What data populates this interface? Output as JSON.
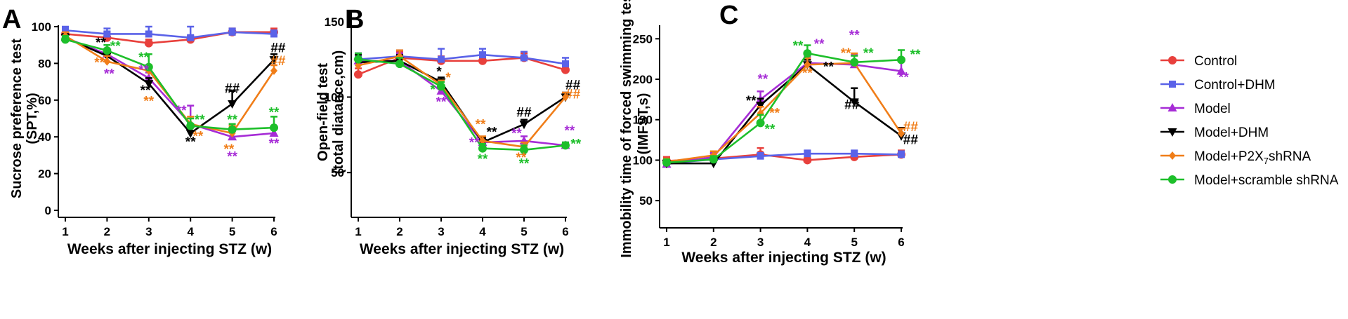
{
  "series_colors": {
    "Control": "#E8403C",
    "Control+DHM": "#5A62E8",
    "Model": "#A62CD6",
    "Model+DHM": "#000000",
    "Model+P2X7shRNA": "#F07D18",
    "Model+scramble shRNA": "#1DBF2A"
  },
  "legend": {
    "entries": [
      {
        "name": "Control",
        "label": "Control",
        "marker": "circle"
      },
      {
        "name": "Control+DHM",
        "label": "Control+DHM",
        "marker": "square"
      },
      {
        "name": "Model",
        "label": "Model",
        "marker": "triangle-up"
      },
      {
        "name": "Model+DHM",
        "label": "Model+DHM",
        "marker": "triangle-down"
      },
      {
        "name": "Model+P2X7shRNA",
        "label_pre": "Model+P2X",
        "label_sub": "7",
        "label_post": "shRNA",
        "marker": "diamond"
      },
      {
        "name": "Model+scramble shRNA",
        "label": "Model+scramble shRNA",
        "marker": "circle"
      }
    ]
  },
  "chart_data": [
    {
      "panel": "A",
      "type": "line",
      "ylabel_line1": "Sucrose preference test",
      "ylabel_line2": "(SPT,%)",
      "xlabel": "Weeks after injecting STZ (w)",
      "x": [
        1,
        2,
        3,
        4,
        5,
        6
      ],
      "ylim": [
        0,
        100
      ],
      "yticks": [
        0,
        20,
        40,
        60,
        80,
        100
      ],
      "series": [
        {
          "name": "Control",
          "values": [
            96,
            94,
            91,
            93,
            97,
            97
          ],
          "err": [
            2,
            3,
            2,
            2,
            2,
            2
          ]
        },
        {
          "name": "Control+DHM",
          "values": [
            98,
            96,
            96,
            94,
            97,
            96
          ],
          "err": [
            2,
            3,
            4,
            6,
            2,
            2
          ]
        },
        {
          "name": "Model",
          "values": [
            94,
            85,
            72,
            47,
            40,
            42
          ],
          "err": [
            2,
            3,
            3,
            10,
            3,
            3
          ]
        },
        {
          "name": "Model+DHM",
          "values": [
            94,
            84,
            69,
            42,
            58,
            82
          ],
          "err": [
            2,
            3,
            3,
            5,
            7,
            3
          ]
        },
        {
          "name": "Model+P2X7shRNA",
          "values": [
            95,
            81,
            76,
            47,
            42,
            76
          ],
          "err": [
            2,
            3,
            3,
            4,
            4,
            3
          ]
        },
        {
          "name": "Model+scramble shRNA",
          "values": [
            93,
            87,
            78,
            46,
            44,
            45
          ],
          "err": [
            2,
            3,
            7,
            4,
            3,
            6
          ]
        }
      ],
      "annotations": [
        {
          "text": "**",
          "series": "Model+DHM",
          "x": 1.85,
          "y": 89
        },
        {
          "text": "**",
          "series": "Model+scramble shRNA",
          "x": 2.2,
          "y": 87
        },
        {
          "text": "**",
          "series": "Model+P2X7shRNA",
          "x": 1.82,
          "y": 78
        },
        {
          "text": "**",
          "series": "Model",
          "x": 2.05,
          "y": 72
        },
        {
          "text": "**",
          "series": "Model+scramble shRNA",
          "x": 2.88,
          "y": 81
        },
        {
          "text": "**",
          "series": "Model",
          "x": 2.88,
          "y": 74
        },
        {
          "text": "**",
          "series": "Model+DHM",
          "x": 2.92,
          "y": 63
        },
        {
          "text": "**",
          "series": "Model+P2X7shRNA",
          "x": 3.0,
          "y": 57
        },
        {
          "text": "**",
          "series": "Model",
          "x": 3.78,
          "y": 52
        },
        {
          "text": "**",
          "series": "Model+scramble shRNA",
          "x": 4.22,
          "y": 47
        },
        {
          "text": "**",
          "series": "Model+P2X7shRNA",
          "x": 4.18,
          "y": 38
        },
        {
          "text": "**",
          "series": "Model+DHM",
          "x": 4.0,
          "y": 35
        },
        {
          "text": "**",
          "series": "Model+scramble shRNA",
          "x": 5.0,
          "y": 47
        },
        {
          "text": "**",
          "series": "Model+P2X7shRNA",
          "x": 4.92,
          "y": 31
        },
        {
          "text": "**",
          "series": "Model",
          "x": 5.0,
          "y": 27
        },
        {
          "text": "##",
          "series": "Model+DHM",
          "x": 5.0,
          "y": 64
        },
        {
          "text": "##",
          "series": "Model+DHM",
          "x": 6.1,
          "y": 86
        },
        {
          "text": "##",
          "series": "Model+P2X7shRNA",
          "x": 6.1,
          "y": 79
        },
        {
          "text": "**",
          "series": "Model+scramble shRNA",
          "x": 6.0,
          "y": 51
        },
        {
          "text": "**",
          "series": "Model",
          "x": 6.0,
          "y": 34
        }
      ]
    },
    {
      "panel": "B",
      "type": "line",
      "ylabel_line1": "Open-field test",
      "ylabel_line2": "(total diatance,cm)",
      "xlabel": "Weeks after injecting STZ (w)",
      "x": [
        1,
        2,
        3,
        4,
        5,
        6
      ],
      "ylim": [
        25,
        155
      ],
      "yticks": [
        50,
        100,
        150
      ],
      "series": [
        {
          "name": "Control",
          "values": [
            115,
            126,
            124,
            124,
            126,
            118
          ],
          "err": [
            4,
            4,
            3,
            3,
            3,
            3
          ]
        },
        {
          "name": "Control+DHM",
          "values": [
            125,
            127,
            125,
            128,
            126,
            122
          ],
          "err": [
            4,
            4,
            7,
            4,
            4,
            4
          ]
        },
        {
          "name": "Model",
          "values": [
            124,
            124,
            104,
            70,
            71,
            68
          ],
          "err": [
            5,
            5,
            4,
            3,
            3,
            2
          ]
        },
        {
          "name": "Model+DHM",
          "values": [
            123,
            124,
            110,
            70,
            82,
            100
          ],
          "err": [
            5,
            4,
            3,
            3,
            3,
            3
          ]
        },
        {
          "name": "Model+P2X7shRNA",
          "values": [
            121,
            127,
            108,
            71,
            67,
            100
          ],
          "err": [
            4,
            4,
            3,
            3,
            3,
            3
          ]
        },
        {
          "name": "Model+scramble shRNA",
          "values": [
            125,
            122,
            107,
            66,
            65,
            68
          ],
          "err": [
            4,
            4,
            3,
            3,
            3,
            2
          ]
        }
      ],
      "annotations": [
        {
          "text": "*",
          "series": "Model+DHM",
          "x": 2.95,
          "y": 114
        },
        {
          "text": "*",
          "series": "Model+P2X7shRNA",
          "x": 3.17,
          "y": 110
        },
        {
          "text": "*",
          "series": "Model+scramble shRNA",
          "x": 2.8,
          "y": 102
        },
        {
          "text": "**",
          "series": "Model",
          "x": 3.0,
          "y": 94
        },
        {
          "text": "**",
          "series": "Model+P2X7shRNA",
          "x": 3.95,
          "y": 79
        },
        {
          "text": "**",
          "series": "Model+DHM",
          "x": 4.22,
          "y": 74
        },
        {
          "text": "**",
          "series": "Model",
          "x": 3.8,
          "y": 67
        },
        {
          "text": "**",
          "series": "Model+scramble shRNA",
          "x": 4.0,
          "y": 56
        },
        {
          "text": "##",
          "series": "Model+DHM",
          "x": 5.0,
          "y": 87
        },
        {
          "text": "**",
          "series": "Model",
          "x": 4.82,
          "y": 73
        },
        {
          "text": "**",
          "series": "Model+P2X7shRNA",
          "x": 4.93,
          "y": 57
        },
        {
          "text": "**",
          "series": "Model+scramble shRNA",
          "x": 5.0,
          "y": 53
        },
        {
          "text": "##",
          "series": "Model+DHM",
          "x": 6.18,
          "y": 105
        },
        {
          "text": "##",
          "series": "Model+P2X7shRNA",
          "x": 6.18,
          "y": 99
        },
        {
          "text": "**",
          "series": "Model",
          "x": 6.1,
          "y": 75
        },
        {
          "text": "**",
          "series": "Model+scramble shRNA",
          "x": 6.25,
          "y": 66
        }
      ]
    },
    {
      "panel": "C",
      "type": "line",
      "ylabel_line1": "Immobility time of forced swimming test",
      "ylabel_line2": "(IMFST,s)",
      "xlabel": "Weeks after injecting STZ (w)",
      "x": [
        1,
        2,
        3,
        4,
        5,
        6
      ],
      "ylim": [
        25,
        265
      ],
      "yticks": [
        50,
        100,
        150,
        200,
        250
      ],
      "series": [
        {
          "name": "Control",
          "values": [
            99,
            102,
            107,
            100,
            104,
            107
          ],
          "err": [
            5,
            6,
            8,
            3,
            4,
            5
          ]
        },
        {
          "name": "Control+DHM",
          "values": [
            96,
            101,
            105,
            108,
            108,
            107
          ],
          "err": [
            4,
            4,
            4,
            4,
            4,
            4
          ]
        },
        {
          "name": "Model",
          "values": [
            95,
            104,
            175,
            220,
            218,
            210
          ],
          "err": [
            4,
            5,
            10,
            8,
            12,
            14
          ]
        },
        {
          "name": "Model+DHM",
          "values": [
            96,
            96,
            168,
            218,
            172,
            130
          ],
          "err": [
            4,
            4,
            8,
            6,
            17,
            10
          ]
        },
        {
          "name": "Model+P2X7shRNA",
          "values": [
            98,
            106,
            158,
            218,
            220,
            133
          ],
          "err": [
            4,
            5,
            8,
            8,
            12,
            6
          ]
        },
        {
          "name": "Model+scramble shRNA",
          "values": [
            97,
            101,
            146,
            232,
            221,
            224
          ],
          "err": [
            4,
            4,
            10,
            10,
            8,
            12
          ]
        }
      ],
      "annotations": [
        {
          "text": "**",
          "series": "Model",
          "x": 3.05,
          "y": 195
        },
        {
          "text": "**",
          "series": "Model+DHM",
          "x": 2.8,
          "y": 168
        },
        {
          "text": "**",
          "series": "Model+P2X7shRNA",
          "x": 3.3,
          "y": 153
        },
        {
          "text": "**",
          "series": "Model+scramble shRNA",
          "x": 3.2,
          "y": 133
        },
        {
          "text": "**",
          "series": "Model+scramble shRNA",
          "x": 3.8,
          "y": 236
        },
        {
          "text": "**",
          "series": "Model",
          "x": 4.25,
          "y": 238
        },
        {
          "text": "**",
          "series": "Model+P2X7shRNA",
          "x": 4.0,
          "y": 202
        },
        {
          "text": "**",
          "series": "Model+DHM",
          "x": 4.45,
          "y": 210
        },
        {
          "text": "**",
          "series": "Model",
          "x": 5.0,
          "y": 249
        },
        {
          "text": "**",
          "series": "Model+P2X7shRNA",
          "x": 4.82,
          "y": 227
        },
        {
          "text": "**",
          "series": "Model+scramble shRNA",
          "x": 5.3,
          "y": 227
        },
        {
          "text": "##",
          "series": "Model+DHM",
          "x": 4.95,
          "y": 163
        },
        {
          "text": "**",
          "series": "Model+scramble shRNA",
          "x": 6.3,
          "y": 225
        },
        {
          "text": "**",
          "series": "Model",
          "x": 6.05,
          "y": 197
        },
        {
          "text": "##",
          "series": "Model+P2X7shRNA",
          "x": 6.2,
          "y": 136
        },
        {
          "text": "##",
          "series": "Model+DHM",
          "x": 6.2,
          "y": 120
        }
      ]
    }
  ]
}
